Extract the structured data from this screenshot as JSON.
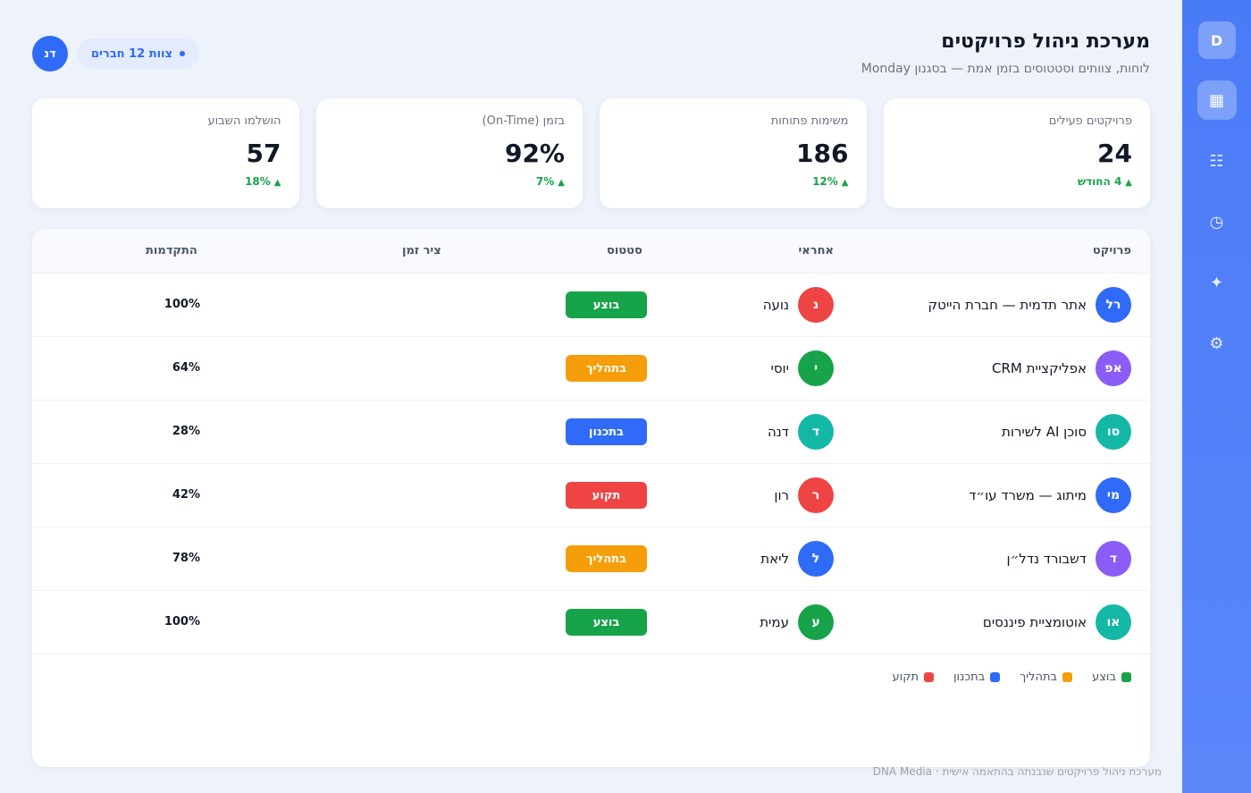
{
  "header": {
    "title": "מערכת ניהול פרויקטים",
    "subtitle": "לוחות, צוותים וסטטוסים בזמן אמת — בסגנון Monday",
    "team_label": "צוות 12 חברים",
    "avatar_initials": "דנ"
  },
  "sidebar": {
    "logo": "D",
    "items": [
      {
        "name": "grid",
        "icon": "▦"
      },
      {
        "name": "list",
        "icon": "☷"
      },
      {
        "name": "clock",
        "icon": "◷"
      },
      {
        "name": "sparkle",
        "icon": "✦"
      },
      {
        "name": "settings",
        "icon": "⚙"
      }
    ]
  },
  "kpis": [
    {
      "label": "פרויקטים פעילים",
      "value": "24",
      "delta": "4 החודש"
    },
    {
      "label": "משימות פתוחות",
      "value": "186",
      "delta": "12%"
    },
    {
      "label": "בזמן (On-Time)",
      "value": "92%",
      "delta": "7%"
    },
    {
      "label": "הושלמו השבוע",
      "value": "57",
      "delta": "18%"
    }
  ],
  "table": {
    "headers": {
      "project": "פרויקט",
      "owner": "אחראי",
      "status": "סטטוס",
      "timeline": "ציר זמן",
      "progress": "התקדמות"
    },
    "rows": [
      {
        "initials": "רל",
        "color": "#2f6bf6",
        "project": "אתר תדמית — חברת הייטק",
        "owner_initial": "נ",
        "owner_color": "#ef4444",
        "owner": "נועה",
        "status": "בוצע",
        "status_color": "#16a34a",
        "progress": "100%"
      },
      {
        "initials": "אפ",
        "color": "#8b5cf6",
        "project": "אפליקציית CRM",
        "owner_initial": "י",
        "owner_color": "#16a34a",
        "owner": "יוסי",
        "status": "בתהליך",
        "status_color": "#f59e0b",
        "progress": "64%"
      },
      {
        "initials": "סו",
        "color": "#14b8a6",
        "project": "סוכן AI לשירות",
        "owner_initial": "ד",
        "owner_color": "#14b8a6",
        "owner": "דנה",
        "status": "בתכנון",
        "status_color": "#2f6bf6",
        "progress": "28%"
      },
      {
        "initials": "מי",
        "color": "#2f6bf6",
        "project": "מיתוג — משרד עו״ד",
        "owner_initial": "ר",
        "owner_color": "#ef4444",
        "owner": "רון",
        "status": "תקוע",
        "status_color": "#ef4444",
        "progress": "42%"
      },
      {
        "initials": "ד",
        "color": "#8b5cf6",
        "project": "דשבורד נדל״ן",
        "owner_initial": "ל",
        "owner_color": "#2f6bf6",
        "owner": "ליאת",
        "status": "בתהליך",
        "status_color": "#f59e0b",
        "progress": "78%"
      },
      {
        "initials": "או",
        "color": "#14b8a6",
        "project": "אוטומציית פיננסים",
        "owner_initial": "ע",
        "owner_color": "#16a34a",
        "owner": "עמית",
        "status": "בוצע",
        "status_color": "#16a34a",
        "progress": "100%"
      }
    ]
  },
  "legend": [
    {
      "label": "בוצע",
      "color": "#16a34a"
    },
    {
      "label": "בתהליך",
      "color": "#f59e0b"
    },
    {
      "label": "בתכנון",
      "color": "#2f6bf6"
    },
    {
      "label": "תקוע",
      "color": "#ef4444"
    }
  ],
  "footer": "מערכת ניהול פרויקטים שנבנתה בהתאמה אישית · DNA Media"
}
